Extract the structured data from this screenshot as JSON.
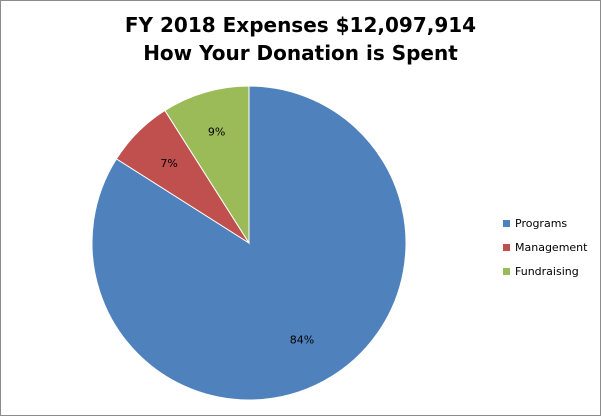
{
  "chart_data": {
    "type": "pie",
    "title": "FY 2018 Expenses $12,097,914",
    "subtitle": "How Your Donation is Spent",
    "legend_position": "right",
    "categories": [
      "Programs",
      "Management",
      "Fundraising"
    ],
    "values": [
      84,
      7,
      9
    ],
    "labels": [
      "84%",
      "7%",
      "9%"
    ],
    "colors": [
      "#4F81BD",
      "#C0504D",
      "#9BBB59"
    ]
  }
}
